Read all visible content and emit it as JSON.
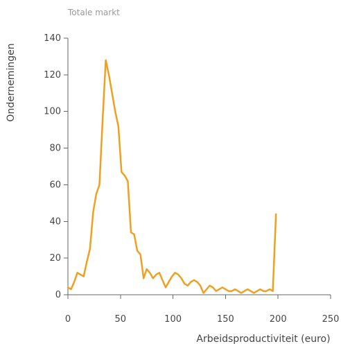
{
  "chart_data": {
    "type": "line",
    "title": "Totale markt",
    "xlabel": "Arbeidsproductiviteit (euro)",
    "ylabel": "Ondernemingen",
    "xlim": [
      0,
      250
    ],
    "ylim": [
      0,
      140
    ],
    "xticks": [
      "0",
      "50",
      "100",
      "150",
      "200",
      "250"
    ],
    "yticks": [
      "0",
      "20",
      "40",
      "60",
      "80",
      "100",
      "120",
      "140"
    ],
    "grid": false,
    "legend": "none",
    "colors": {
      "series": "#f0a020",
      "axis": "#666666"
    },
    "series": [
      {
        "x": [
          0,
          3,
          6,
          9,
          12,
          15,
          18,
          21,
          24,
          27,
          30,
          33,
          36,
          39,
          42,
          45,
          48,
          51,
          54,
          57,
          60,
          63,
          66,
          69,
          72,
          75,
          78,
          81,
          84,
          87,
          90,
          93,
          96,
          99,
          102,
          105,
          108,
          111,
          114,
          117,
          120,
          123,
          126,
          129,
          132,
          135,
          138,
          141,
          144,
          147,
          150,
          153,
          156,
          159,
          162,
          165,
          168,
          171,
          174,
          177,
          180,
          183,
          186,
          189,
          192,
          195,
          198
        ],
        "y": [
          4,
          3,
          7,
          12,
          11,
          10,
          18,
          25,
          45,
          55,
          60,
          95,
          128,
          120,
          110,
          100,
          92,
          67,
          65,
          62,
          34,
          33,
          24,
          22,
          9,
          14,
          12,
          9,
          11,
          12,
          8,
          4,
          7,
          10,
          12,
          11,
          9,
          6,
          5,
          7,
          8,
          7,
          5,
          1,
          3,
          5,
          4,
          2,
          3,
          4,
          3,
          2,
          2,
          3,
          2,
          1,
          2,
          3,
          2,
          1,
          2,
          3,
          2,
          2,
          3,
          2,
          44
        ]
      }
    ]
  }
}
